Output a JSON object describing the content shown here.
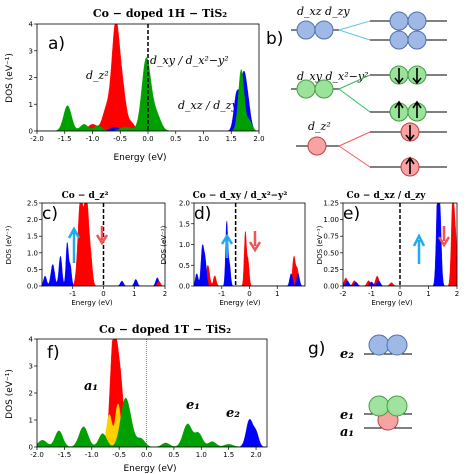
{
  "chart_data": {
    "top": {
      "type": "area",
      "title": "Co − doped 1H − TiS₂",
      "panel": "a)",
      "xlabel": "Energy (eV)",
      "ylabel": "DOS (eV⁻¹)",
      "xlim": [
        -2.0,
        2.0
      ],
      "ylim": [
        0,
        4
      ],
      "xticks": [
        "-2.0",
        "-1.5",
        "-1.0",
        "-0.5",
        "0.0",
        "0.5",
        "1.0",
        "1.5",
        "2.0"
      ],
      "yticks": [
        "0",
        "1",
        "2",
        "3",
        "4"
      ],
      "labels": {
        "z2": "d_z²",
        "xy": "d_xy / d_x²−y²",
        "xz": "d_xz / d_zy"
      },
      "series": [
        {
          "color": "#ff0000",
          "peaks": [
            [
              -1.0,
              0.25,
              0.08
            ],
            [
              -0.75,
              0.8,
              0.07
            ],
            [
              -0.58,
              4.0,
              0.07
            ],
            [
              -0.45,
              1.2,
              0.06
            ],
            [
              -0.3,
              0.3,
              0.06
            ]
          ]
        },
        {
          "color": "#0000ff",
          "peaks": [
            [
              -0.6,
              0.15,
              0.08
            ],
            [
              1.6,
              1.4,
              0.05
            ],
            [
              1.72,
              1.9,
              0.05
            ],
            [
              1.8,
              0.9,
              0.05
            ]
          ]
        },
        {
          "color": "#00a000",
          "peaks": [
            [
              -1.45,
              0.95,
              0.07
            ],
            [
              -1.15,
              0.25,
              0.07
            ],
            [
              -0.9,
              0.2,
              0.07
            ],
            [
              -0.4,
              0.15,
              0.1
            ],
            [
              -0.03,
              2.7,
              0.08
            ],
            [
              0.15,
              0.6,
              0.08
            ],
            [
              1.68,
              2.3,
              0.05
            ],
            [
              1.82,
              0.4,
              0.05
            ]
          ]
        }
      ]
    },
    "panel_c": {
      "type": "area",
      "panel": "c)",
      "title": "Co − d_z²",
      "xlabel": "Energy (eV)",
      "ylabel": "DOS (eV⁻¹)",
      "xlim": [
        -2,
        2
      ],
      "ylim": [
        0,
        2.5
      ],
      "xticks": [
        "-1",
        "0",
        "1",
        "2"
      ],
      "yticks": [
        "0.0",
        "0.5",
        "1.0",
        "1.5",
        "2.0",
        "2.5"
      ],
      "series": [
        {
          "color": "#0000ff",
          "peaks": [
            [
              -1.9,
              0.3,
              0.05
            ],
            [
              -1.65,
              0.65,
              0.06
            ],
            [
              -1.4,
              0.9,
              0.05
            ],
            [
              -1.18,
              1.3,
              0.04
            ],
            [
              -1.08,
              0.6,
              0.04
            ],
            [
              -0.72,
              0.25,
              0.05
            ],
            [
              0.6,
              0.15,
              0.05
            ],
            [
              1.05,
              0.2,
              0.05
            ],
            [
              1.75,
              0.25,
              0.05
            ]
          ]
        },
        {
          "color": "#ff0000",
          "peaks": [
            [
              -0.75,
              2.6,
              0.08
            ],
            [
              -0.55,
              2.6,
              0.08
            ],
            [
              -0.4,
              0.5,
              0.05
            ],
            [
              1.8,
              0.15,
              0.05
            ]
          ]
        }
      ]
    },
    "panel_d": {
      "type": "area",
      "panel": "d)",
      "title": "Co − d_xy / d_x²−y²",
      "xlabel": "Energy (eV)",
      "ylabel": "DOS (eV⁻¹)",
      "xlim": [
        -2,
        2
      ],
      "ylim": [
        0,
        2.0
      ],
      "xticks": [
        "-1",
        "0",
        "1"
      ],
      "yticks": [
        "0.0",
        "0.5",
        "1.0",
        "1.5",
        "2.0"
      ],
      "series": [
        {
          "color": "#ff0000",
          "peaks": [
            [
              -1.7,
              0.35,
              0.05
            ],
            [
              -1.5,
              0.5,
              0.06
            ],
            [
              -1.25,
              0.25,
              0.05
            ],
            [
              -0.15,
              1.3,
              0.04
            ],
            [
              -0.05,
              0.6,
              0.04
            ],
            [
              1.6,
              0.7,
              0.05
            ],
            [
              1.72,
              0.4,
              0.05
            ]
          ]
        },
        {
          "color": "#0000ff",
          "peaks": [
            [
              -1.9,
              0.3,
              0.05
            ],
            [
              -1.7,
              0.9,
              0.05
            ],
            [
              -1.6,
              0.6,
              0.05
            ],
            [
              -0.82,
              1.55,
              0.04
            ],
            [
              -0.72,
              0.5,
              0.04
            ],
            [
              1.5,
              0.3,
              0.05
            ],
            [
              1.75,
              0.3,
              0.05
            ]
          ]
        }
      ]
    },
    "panel_e": {
      "type": "area",
      "panel": "e)",
      "title": "Co − d_xz / d_zy",
      "xlabel": "Energy (eV)",
      "ylabel": "DOS (eV⁻¹)",
      "xlim": [
        -2,
        2
      ],
      "ylim": [
        0,
        1.25
      ],
      "xticks": [
        "-2",
        "-1",
        "0",
        "1",
        "2"
      ],
      "yticks": [
        "0.00",
        "0.25",
        "0.50",
        "0.75",
        "1.00",
        "1.25"
      ],
      "series": [
        {
          "color": "#ff0000",
          "peaks": [
            [
              -1.9,
              0.12,
              0.06
            ],
            [
              -1.6,
              0.08,
              0.06
            ],
            [
              -1.1,
              0.08,
              0.06
            ],
            [
              -0.8,
              0.15,
              0.06
            ],
            [
              -0.3,
              0.05,
              0.06
            ],
            [
              1.85,
              1.3,
              0.05
            ],
            [
              1.95,
              0.7,
              0.05
            ]
          ]
        },
        {
          "color": "#0000ff",
          "peaks": [
            [
              -1.85,
              0.08,
              0.06
            ],
            [
              -1.55,
              0.06,
              0.06
            ],
            [
              -1.0,
              0.06,
              0.06
            ],
            [
              -0.75,
              0.08,
              0.06
            ],
            [
              1.32,
              1.3,
              0.05
            ],
            [
              1.4,
              1.0,
              0.05
            ]
          ]
        }
      ]
    },
    "bottom": {
      "type": "area",
      "title": "Co − doped 1T − TiS₂",
      "panel": "f)",
      "xlabel": "Energy (eV)",
      "ylabel": "DOS (eV⁻¹)",
      "xlim": [
        -2.0,
        2.2
      ],
      "ylim": [
        0,
        4
      ],
      "xticks": [
        "-2.0",
        "-1.5",
        "-1.0",
        "-0.5",
        "0.0",
        "0.5",
        "1.0",
        "1.5",
        "2.0"
      ],
      "yticks": [
        "0",
        "1",
        "2",
        "3",
        "4"
      ],
      "labels": {
        "a1": "a₁",
        "e1": "e₁",
        "e2": "e₂"
      },
      "series": [
        {
          "color": "#ff0000",
          "peaks": [
            [
              -0.6,
              4.2,
              0.06
            ],
            [
              -0.48,
              2.4,
              0.06
            ]
          ]
        },
        {
          "color": "#ffd000",
          "peaks": [
            [
              -0.68,
              1.2,
              0.05
            ],
            [
              -0.52,
              1.6,
              0.05
            ]
          ]
        },
        {
          "color": "#0000ff",
          "peaks": [
            [
              -0.45,
              0.25,
              0.08
            ],
            [
              1.88,
              1.0,
              0.06
            ],
            [
              2.0,
              0.5,
              0.05
            ]
          ]
        },
        {
          "color": "#00a000",
          "peaks": [
            [
              -1.9,
              0.25,
              0.08
            ],
            [
              -1.6,
              0.6,
              0.07
            ],
            [
              -1.15,
              0.75,
              0.08
            ],
            [
              -0.8,
              0.5,
              0.07
            ],
            [
              -0.4,
              1.5,
              0.08
            ],
            [
              -0.3,
              0.6,
              0.08
            ],
            [
              -0.1,
              0.3,
              0.07
            ],
            [
              0.35,
              0.15,
              0.07
            ],
            [
              0.75,
              0.85,
              0.08
            ],
            [
              0.95,
              0.5,
              0.07
            ],
            [
              1.2,
              0.2,
              0.07
            ],
            [
              1.5,
              0.1,
              0.08
            ]
          ]
        }
      ]
    }
  },
  "diagrams": {
    "b": {
      "panel": "b)",
      "labels": [
        "d_xz d_zy",
        "d_xy d_x²−y²",
        "d_z²"
      ]
    },
    "g": {
      "panel": "g)",
      "labels": [
        "e₂",
        "e₁",
        "a₁"
      ]
    }
  },
  "colors": {
    "orbital_blue": "#9fb8e6",
    "orbital_green": "#9be29b",
    "orbital_red": "#f7a3a3",
    "link_blue": "#5fc8e8",
    "link_green": "#2fbf5b",
    "link_red": "#ff5555",
    "arrow_cyan": "#22aaee",
    "arrow_red": "#ee5555"
  }
}
